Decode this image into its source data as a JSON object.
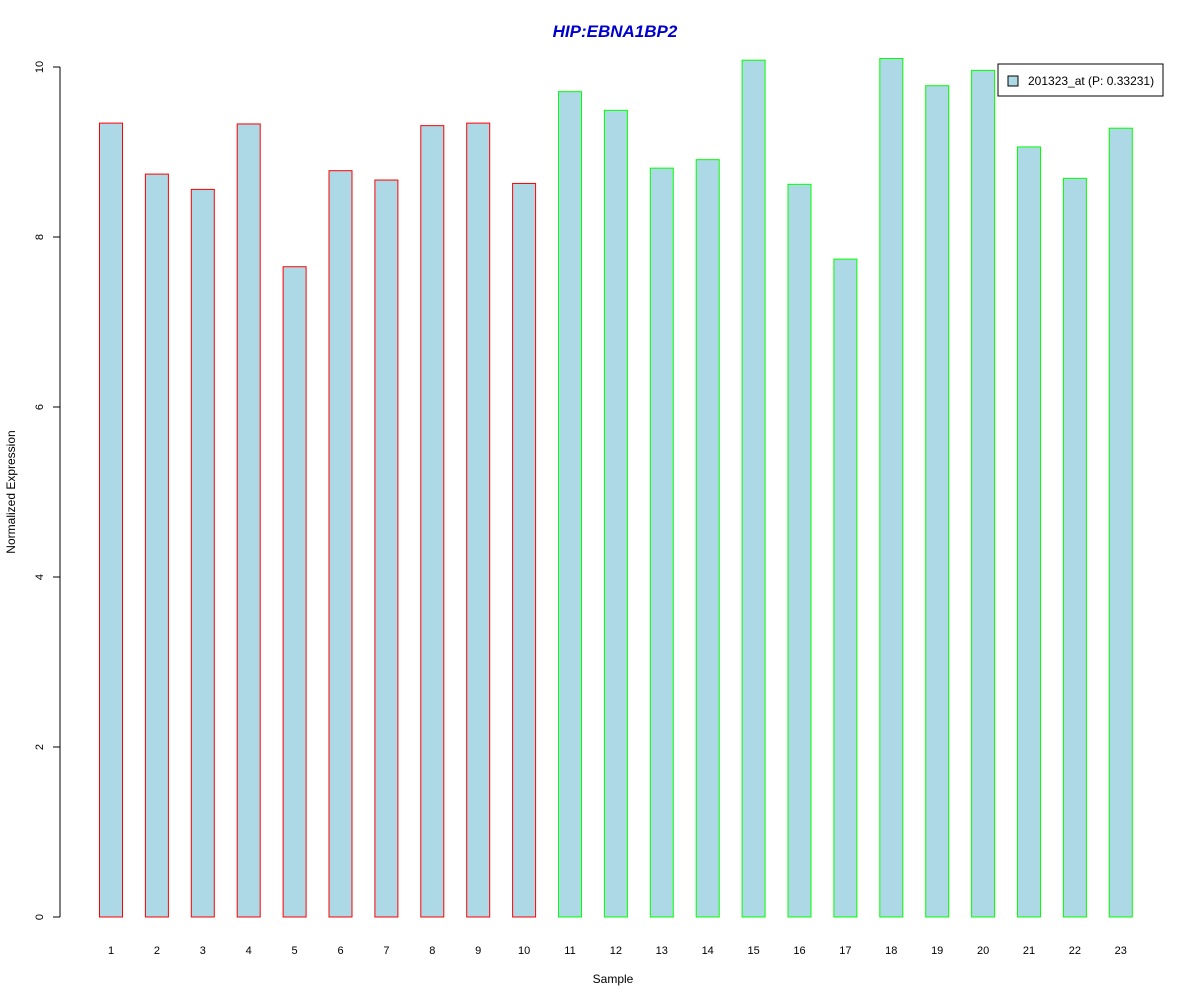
{
  "chart_data": {
    "type": "bar",
    "title": "HIP:EBNA1BP2",
    "xlabel": "Sample",
    "ylabel": "Normalized Expression",
    "categories": [
      "1",
      "2",
      "3",
      "4",
      "5",
      "6",
      "7",
      "8",
      "9",
      "10",
      "11",
      "12",
      "13",
      "14",
      "15",
      "16",
      "17",
      "18",
      "19",
      "20",
      "21",
      "22",
      "23"
    ],
    "series": [
      {
        "name": "201323_at (P: 0.33231)",
        "values": [
          9.34,
          8.74,
          8.56,
          9.33,
          7.65,
          8.78,
          8.67,
          9.31,
          9.34,
          8.63,
          9.71,
          9.49,
          8.81,
          8.91,
          10.08,
          8.62,
          7.74,
          10.1,
          9.78,
          9.96,
          9.06,
          8.69,
          9.28
        ]
      }
    ],
    "ylim": [
      0,
      10
    ],
    "yticks": [
      0,
      2,
      4,
      6,
      8,
      10
    ],
    "grid": false,
    "legend": "top-right",
    "colors": {
      "title": "#0000cc",
      "bar_fill": "#add8e6",
      "group_a_border": "#ff0000",
      "group_b_border": "#00ff00",
      "axis": "#000000"
    },
    "group_a_count": 10
  }
}
